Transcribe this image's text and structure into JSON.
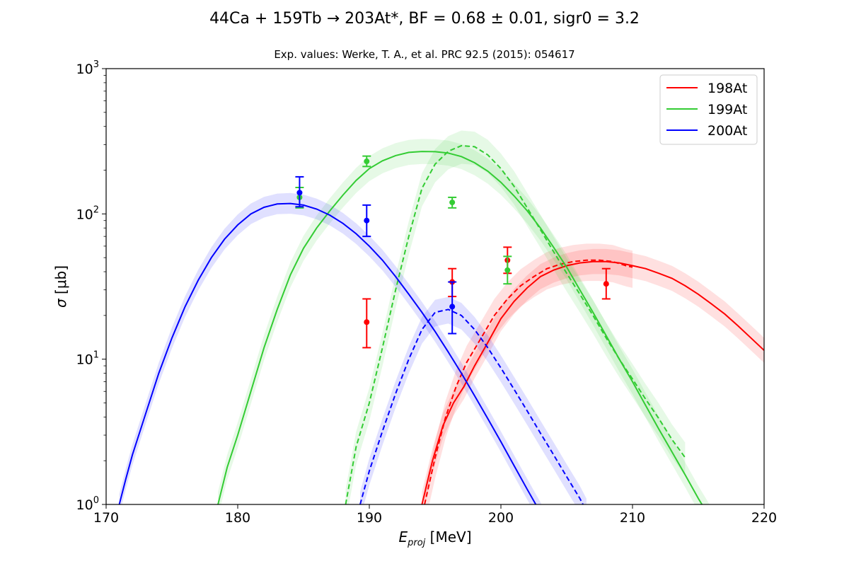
{
  "chart_data": {
    "type": "line",
    "title": "44Ca + 159Tb → 203At*, BF = 0.68 ± 0.01, sigr0 = 3.2",
    "subtitle": "Exp. values: Werke, T. A., et al. PRC 92.5 (2015): 054617",
    "xlabel_main": "E",
    "xlabel_sub": "proj",
    "xlabel_unit": " [MeV]",
    "ylabel_sigma": "σ",
    "ylabel_unit": " [μb]",
    "xlim": [
      170,
      220
    ],
    "ylim": [
      1,
      1000
    ],
    "yscale": "log",
    "grid": false,
    "legend_position": "upper right",
    "x_ticks": [
      170,
      180,
      190,
      200,
      210,
      220
    ],
    "y_ticks": [
      {
        "value": 1,
        "base": "10",
        "exp": "0"
      },
      {
        "value": 10,
        "base": "10",
        "exp": "1"
      },
      {
        "value": 100,
        "base": "10",
        "exp": "2"
      },
      {
        "value": 1000,
        "base": "10",
        "exp": "3"
      }
    ],
    "series": [
      {
        "name": "198At",
        "color": "#ff0000",
        "band_color": "#ff0000",
        "solid": [
          [
            194,
            1.0
          ],
          [
            194.8,
            2.0
          ],
          [
            195.6,
            3.5
          ],
          [
            196.4,
            5.0
          ],
          [
            197.2,
            6.5
          ],
          [
            198,
            9
          ],
          [
            199,
            13
          ],
          [
            200,
            19
          ],
          [
            201,
            25
          ],
          [
            202,
            31
          ],
          [
            203,
            37
          ],
          [
            204,
            41
          ],
          [
            205,
            44
          ],
          [
            206,
            46
          ],
          [
            207,
            47
          ],
          [
            208,
            47
          ],
          [
            209,
            46
          ],
          [
            210,
            44
          ],
          [
            211,
            42
          ],
          [
            212,
            39
          ],
          [
            213,
            36
          ],
          [
            214,
            32
          ],
          [
            215,
            28
          ],
          [
            216,
            24
          ],
          [
            217,
            20.5
          ],
          [
            218,
            17
          ],
          [
            219,
            14
          ],
          [
            220,
            11.5
          ]
        ],
        "solid_band": [
          0.82,
          1.22
        ],
        "dashed": [
          [
            194.2,
            1.0
          ],
          [
            195,
            2.1
          ],
          [
            195.8,
            4.0
          ],
          [
            196.6,
            6.5
          ],
          [
            197.4,
            9.5
          ],
          [
            198.5,
            14
          ],
          [
            199.5,
            20
          ],
          [
            200.5,
            26
          ],
          [
            201.5,
            32
          ],
          [
            202.5,
            37
          ],
          [
            203.5,
            42
          ],
          [
            204.5,
            45
          ],
          [
            205.5,
            47
          ],
          [
            206.5,
            48
          ],
          [
            207.5,
            48
          ],
          [
            208.5,
            47
          ],
          [
            209.5,
            44
          ],
          [
            210,
            43
          ]
        ],
        "dashed_band": [
          0.72,
          1.3
        ],
        "points": [
          {
            "x": 189.8,
            "y": 18,
            "ylo": 12,
            "yhi": 26
          },
          {
            "x": 196.3,
            "y": 34,
            "ylo": 27,
            "yhi": 42
          },
          {
            "x": 200.5,
            "y": 48,
            "ylo": 39,
            "yhi": 59
          },
          {
            "x": 208,
            "y": 33,
            "ylo": 26,
            "yhi": 42
          }
        ]
      },
      {
        "name": "199At",
        "color": "#33cc33",
        "band_color": "#33cc33",
        "solid": [
          [
            178.5,
            1.0
          ],
          [
            179.2,
            1.8
          ],
          [
            180,
            3.0
          ],
          [
            181,
            6
          ],
          [
            182,
            12
          ],
          [
            183,
            22
          ],
          [
            184,
            38
          ],
          [
            185,
            58
          ],
          [
            186,
            80
          ],
          [
            187,
            105
          ],
          [
            188,
            135
          ],
          [
            189,
            170
          ],
          [
            190,
            205
          ],
          [
            191,
            232
          ],
          [
            192,
            252
          ],
          [
            193,
            265
          ],
          [
            194,
            269
          ],
          [
            195,
            268
          ],
          [
            196,
            262
          ],
          [
            197,
            248
          ],
          [
            198,
            225
          ],
          [
            199,
            197
          ],
          [
            200,
            165
          ],
          [
            201,
            133
          ],
          [
            202,
            105
          ],
          [
            203,
            80
          ],
          [
            204,
            59
          ],
          [
            205,
            43
          ],
          [
            206,
            30
          ],
          [
            207,
            21
          ],
          [
            208,
            14.5
          ],
          [
            209,
            10
          ],
          [
            210,
            7
          ],
          [
            211,
            4.8
          ],
          [
            212,
            3.3
          ],
          [
            213,
            2.3
          ],
          [
            214,
            1.6
          ],
          [
            215,
            1.1
          ],
          [
            216,
            0.78
          ],
          [
            217,
            0.52
          ],
          [
            218,
            0.36
          ]
        ],
        "solid_band": [
          0.82,
          1.22
        ],
        "dashed": [
          [
            188.2,
            1.0
          ],
          [
            189,
            2.5
          ],
          [
            190,
            5
          ],
          [
            191,
            12
          ],
          [
            192,
            30
          ],
          [
            193,
            70
          ],
          [
            194,
            150
          ],
          [
            195,
            220
          ],
          [
            196,
            270
          ],
          [
            197,
            295
          ],
          [
            198,
            290
          ],
          [
            199,
            255
          ],
          [
            200,
            205
          ],
          [
            201,
            155
          ],
          [
            202,
            110
          ],
          [
            203,
            78
          ],
          [
            204,
            55
          ],
          [
            205,
            39
          ],
          [
            206,
            28
          ],
          [
            207,
            20
          ],
          [
            208,
            14
          ],
          [
            209,
            10
          ],
          [
            210,
            7.3
          ],
          [
            211,
            5.3
          ],
          [
            212,
            3.9
          ],
          [
            213,
            2.8
          ],
          [
            214,
            2.1
          ]
        ],
        "dashed_band": [
          0.75,
          1.27
        ],
        "points": [
          {
            "x": 184.7,
            "y": 130,
            "ylo": 110,
            "yhi": 152
          },
          {
            "x": 189.8,
            "y": 230,
            "ylo": 212,
            "yhi": 250
          },
          {
            "x": 196.3,
            "y": 120,
            "ylo": 110,
            "yhi": 130
          },
          {
            "x": 200.5,
            "y": 41,
            "ylo": 33,
            "yhi": 51
          }
        ]
      },
      {
        "name": "200At",
        "color": "#0000ff",
        "band_color": "#0000ff",
        "solid": [
          [
            171,
            1.0
          ],
          [
            171.5,
            1.5
          ],
          [
            172,
            2.2
          ],
          [
            173,
            4.2
          ],
          [
            174,
            8
          ],
          [
            175,
            14
          ],
          [
            176,
            23
          ],
          [
            177,
            35
          ],
          [
            178,
            50
          ],
          [
            179,
            67
          ],
          [
            180,
            84
          ],
          [
            181,
            100
          ],
          [
            182,
            111
          ],
          [
            183,
            117
          ],
          [
            184,
            118
          ],
          [
            185,
            115
          ],
          [
            186,
            108
          ],
          [
            187,
            98
          ],
          [
            188,
            86
          ],
          [
            189,
            73
          ],
          [
            190,
            60
          ],
          [
            191,
            48
          ],
          [
            192,
            37
          ],
          [
            193,
            28
          ],
          [
            194,
            21
          ],
          [
            195,
            15.5
          ],
          [
            196,
            11.2
          ],
          [
            197,
            8
          ],
          [
            198,
            5.6
          ],
          [
            199,
            3.9
          ],
          [
            200,
            2.7
          ],
          [
            201,
            1.85
          ],
          [
            202,
            1.27
          ],
          [
            203,
            0.88
          ],
          [
            204,
            0.6
          ]
        ],
        "solid_band": [
          0.85,
          1.18
        ],
        "dashed": [
          [
            189.3,
            1.0
          ],
          [
            190,
            1.7
          ],
          [
            191,
            3.2
          ],
          [
            192,
            5.8
          ],
          [
            193,
            10
          ],
          [
            194,
            16
          ],
          [
            195,
            21
          ],
          [
            196,
            22
          ],
          [
            197,
            20
          ],
          [
            198,
            16
          ],
          [
            199,
            12
          ],
          [
            200,
            8.7
          ],
          [
            201,
            6.2
          ],
          [
            202,
            4.4
          ],
          [
            203,
            3.1
          ],
          [
            204,
            2.2
          ],
          [
            205,
            1.55
          ],
          [
            206,
            1.1
          ],
          [
            206.5,
            0.9
          ]
        ],
        "dashed_band": [
          0.8,
          1.22
        ],
        "points": [
          {
            "x": 184.7,
            "y": 140,
            "ylo": 112,
            "yhi": 180
          },
          {
            "x": 189.8,
            "y": 90,
            "ylo": 70,
            "yhi": 115
          },
          {
            "x": 196.3,
            "y": 23,
            "ylo": 15,
            "yhi": 34
          }
        ]
      }
    ]
  }
}
